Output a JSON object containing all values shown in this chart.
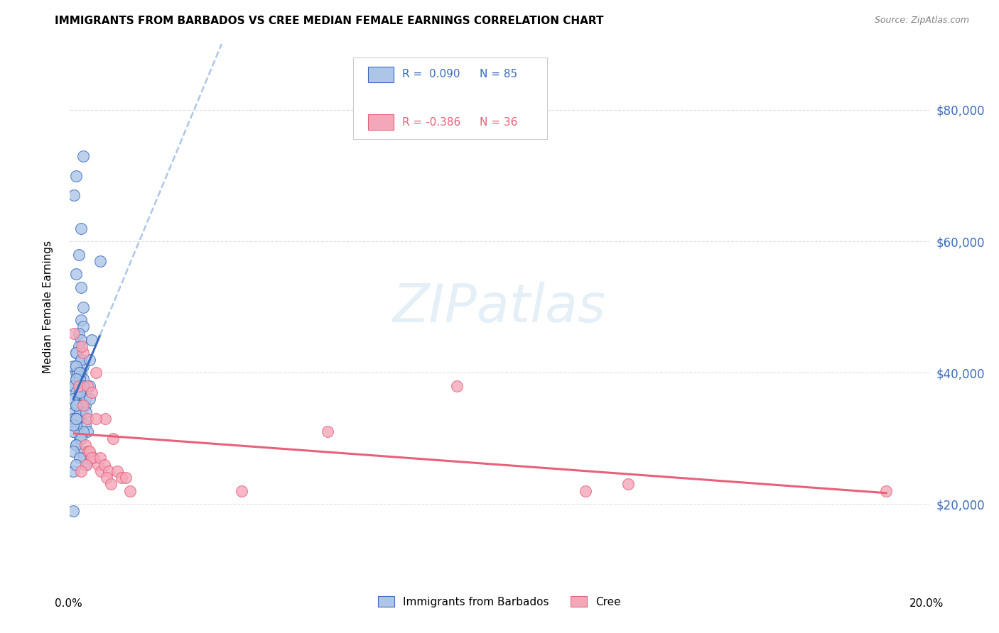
{
  "title": "IMMIGRANTS FROM BARBADOS VS CREE MEDIAN FEMALE EARNINGS CORRELATION CHART",
  "source": "Source: ZipAtlas.com",
  "ylabel": "Median Female Earnings",
  "ytick_values": [
    20000,
    40000,
    60000,
    80000
  ],
  "legend_label1": "Immigrants from Barbados",
  "legend_label2": "Cree",
  "color_blue": "#adc6e8",
  "color_pink": "#f4a7b9",
  "line_blue": "#3a6bbf",
  "line_blue_light": "#adc6e8",
  "line_pink": "#e8607a",
  "background": "#ffffff",
  "grid_color": "#dddddd",
  "xlim": [
    0.0,
    0.2
  ],
  "ylim": [
    10000,
    90000
  ],
  "blue_x": [
    0.0025,
    0.0015,
    0.003,
    0.001,
    0.002,
    0.0015,
    0.0025,
    0.003,
    0.0025,
    0.003,
    0.002,
    0.0025,
    0.002,
    0.0015,
    0.0025,
    0.003,
    0.0025,
    0.0015,
    0.002,
    0.0025,
    0.002,
    0.0015,
    0.001,
    0.001,
    0.0015,
    0.002,
    0.0015,
    0.001,
    0.002,
    0.0025,
    0.0035,
    0.0025,
    0.002,
    0.0035,
    0.004,
    0.0045,
    0.0015,
    0.0025,
    0.0008,
    0.003,
    0.0025,
    0.005,
    0.0035,
    0.0028,
    0.0022,
    0.0018,
    0.001,
    0.003,
    0.0022,
    0.0045,
    0.0015,
    0.0025,
    0.0032,
    0.0038,
    0.0008,
    0.0018,
    0.0022,
    0.0008,
    0.0015,
    0.0008,
    0.0018,
    0.0025,
    0.0008,
    0.0015,
    0.0008,
    0.0025,
    0.0015,
    0.0008,
    0.0022,
    0.0015,
    0.003,
    0.0022,
    0.0015,
    0.0008,
    0.007,
    0.0008,
    0.0015,
    0.0022,
    0.0015,
    0.003,
    0.0022,
    0.0045,
    0.0015,
    0.0038,
    0.0015
  ],
  "blue_y": [
    62000,
    70000,
    73000,
    67000,
    58000,
    55000,
    53000,
    50000,
    48000,
    47000,
    46000,
    45000,
    44000,
    43000,
    42000,
    41000,
    40000,
    39000,
    38000,
    37000,
    36000,
    35000,
    34000,
    33000,
    32000,
    31000,
    40000,
    38000,
    37000,
    36000,
    35000,
    34000,
    33000,
    32000,
    31000,
    38000,
    43000,
    42000,
    41000,
    39000,
    38000,
    45000,
    36000,
    35000,
    34000,
    33000,
    32000,
    31000,
    30000,
    42000,
    29000,
    28000,
    27000,
    26000,
    25000,
    40000,
    39000,
    38000,
    37000,
    36000,
    35000,
    34000,
    33000,
    32000,
    31000,
    30000,
    29000,
    28000,
    27000,
    26000,
    35000,
    34000,
    33000,
    32000,
    57000,
    19000,
    41000,
    40000,
    39000,
    38000,
    37000,
    36000,
    35000,
    34000,
    33000
  ],
  "pink_x": [
    0.001,
    0.002,
    0.003,
    0.004,
    0.003,
    0.004,
    0.005,
    0.006,
    0.0028,
    0.0035,
    0.0042,
    0.0055,
    0.0065,
    0.0072,
    0.0082,
    0.0045,
    0.005,
    0.0038,
    0.0025,
    0.006,
    0.007,
    0.008,
    0.009,
    0.0085,
    0.01,
    0.011,
    0.012,
    0.0095,
    0.013,
    0.014,
    0.19,
    0.13,
    0.12,
    0.09,
    0.06,
    0.04
  ],
  "pink_y": [
    46000,
    38000,
    35000,
    33000,
    43000,
    38000,
    37000,
    40000,
    44000,
    29000,
    28000,
    27000,
    26000,
    25000,
    33000,
    28000,
    27000,
    26000,
    25000,
    33000,
    27000,
    26000,
    25000,
    24000,
    30000,
    25000,
    24000,
    23000,
    24000,
    22000,
    22000,
    23000,
    22000,
    38000,
    31000,
    22000
  ]
}
